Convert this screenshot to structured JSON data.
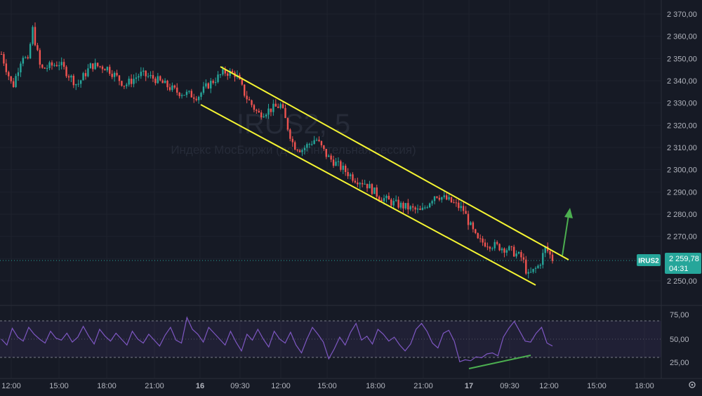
{
  "watermark": {
    "symbol": "IRUS2, 5",
    "description": "Индекс МосБиржи (дополнительная сессия)"
  },
  "price_axis": {
    "ticks": [
      "2 370,00",
      "2 360,00",
      "2 350,00",
      "2 340,00",
      "2 330,00",
      "2 320,00",
      "2 310,00",
      "2 300,00",
      "2 290,00",
      "2 280,00",
      "2 270,00",
      "2 260,00",
      "2 250,00"
    ]
  },
  "rsi_axis": {
    "ticks": [
      "75,00",
      "50,00",
      "25,00"
    ]
  },
  "time_axis": {
    "ticks": [
      "12:00",
      "15:00",
      "18:00",
      "21:00",
      "16",
      "09:30",
      "12:00",
      "15:00",
      "18:00",
      "21:00",
      "17",
      "09:30",
      "12:00",
      "15:00",
      "18:00"
    ]
  },
  "last_price": {
    "symbol": "IRUS2",
    "value": "2 259,78",
    "countdown": "04:31"
  },
  "settings_icon": "gear-icon",
  "colors": {
    "background": "#161a25",
    "candle_up": "#26a69a",
    "candle_down": "#ef5350",
    "channel": "#f5f532",
    "rsi_line": "#7e57c2",
    "rsi_band": "#7e57c2",
    "divergence": "#4caf50",
    "arrow": "#4caf50",
    "axis_text": "#b2b5be",
    "grid": "#1e222d"
  },
  "chart_data": [
    {
      "type": "candlestick",
      "title": "IRUS2, 5",
      "subtitle": "Индекс МосБиржи (дополнительная сессия)",
      "interval": "5",
      "ylim": [
        2245,
        2375
      ],
      "x_ticks": [
        "12:00",
        "15:00",
        "18:00",
        "21:00",
        "16",
        "09:30",
        "12:00",
        "15:00",
        "18:00",
        "21:00",
        "17",
        "09:30",
        "12:00",
        "15:00",
        "18:00"
      ],
      "price_path": [
        {
          "t": "11:00",
          "close": 2352
        },
        {
          "t": "11:30",
          "close": 2337
        },
        {
          "t": "12:30",
          "close": 2352
        },
        {
          "t": "13:00",
          "close": 2348
        },
        {
          "t": "13:20",
          "close": 2364
        },
        {
          "t": "14:00",
          "close": 2345
        },
        {
          "t": "15:00",
          "close": 2348
        },
        {
          "t": "16:00",
          "close": 2338
        },
        {
          "t": "17:00",
          "close": 2347
        },
        {
          "t": "18:00",
          "close": 2346
        },
        {
          "t": "19:00",
          "close": 2338
        },
        {
          "t": "20:00",
          "close": 2343
        },
        {
          "t": "21:00",
          "close": 2341
        },
        {
          "t": "22:00",
          "close": 2335
        },
        {
          "t": "23:50",
          "close": 2333
        },
        {
          "t": "16 09:00",
          "close": 2338
        },
        {
          "t": "09:30",
          "close": 2344
        },
        {
          "t": "10:00",
          "close": 2343
        },
        {
          "t": "10:30",
          "close": 2333
        },
        {
          "t": "11:00",
          "close": 2325
        },
        {
          "t": "12:00",
          "close": 2329
        },
        {
          "t": "13:00",
          "close": 2311
        },
        {
          "t": "13:30",
          "close": 2309
        },
        {
          "t": "14:30",
          "close": 2314
        },
        {
          "t": "15:30",
          "close": 2306
        },
        {
          "t": "16:00",
          "close": 2296
        },
        {
          "t": "17:00",
          "close": 2294
        },
        {
          "t": "18:00",
          "close": 2288
        },
        {
          "t": "19:00",
          "close": 2285
        },
        {
          "t": "20:00",
          "close": 2281
        },
        {
          "t": "21:00",
          "close": 2289
        },
        {
          "t": "22:00",
          "close": 2286
        },
        {
          "t": "23:50",
          "close": 2282
        },
        {
          "t": "17 09:00",
          "close": 2276
        },
        {
          "t": "09:00",
          "close": 2268
        },
        {
          "t": "09:30",
          "close": 2264
        },
        {
          "t": "10:00",
          "close": 2260
        },
        {
          "t": "10:30",
          "close": 2270
        },
        {
          "t": "11:00",
          "close": 2252
        },
        {
          "t": "11:30",
          "close": 2257
        },
        {
          "t": "12:00",
          "close": 2265
        },
        {
          "t": "12:10",
          "close": 2259.78
        }
      ],
      "annotations": [
        {
          "kind": "descending channel upper",
          "from": {
            "t": "16 09:00",
            "price": 2347
          },
          "to": {
            "t": "17 12:30",
            "price": 2259
          }
        },
        {
          "kind": "descending channel lower",
          "from": {
            "t": "15 23:50",
            "price": 2329
          },
          "to": {
            "t": "17 11:50",
            "price": 2248
          }
        },
        {
          "kind": "breakout arrow",
          "from": {
            "price": 2261
          },
          "to": {
            "price": 2282
          }
        }
      ]
    },
    {
      "type": "line",
      "name": "RSI",
      "ylim": [
        15,
        85
      ],
      "bands": [
        30,
        70
      ],
      "values": [
        50,
        44,
        61,
        52,
        48,
        62,
        55,
        50,
        46,
        58,
        51,
        49,
        56,
        47,
        52,
        63,
        53,
        45,
        60,
        53,
        48,
        56,
        50,
        44,
        58,
        50,
        46,
        55,
        49,
        43,
        54,
        62,
        49,
        46,
        72,
        60,
        55,
        47,
        62,
        56,
        50,
        44,
        58,
        47,
        38,
        55,
        49,
        60,
        50,
        42,
        58,
        50,
        46,
        57,
        44,
        36,
        50,
        62,
        55,
        47,
        30,
        40,
        52,
        44,
        57,
        66,
        49,
        53,
        45,
        60,
        55,
        48,
        52,
        44,
        38,
        45,
        60,
        66,
        58,
        46,
        41,
        56,
        59,
        48,
        27,
        29,
        28,
        32,
        31,
        35,
        36,
        33,
        52,
        61,
        68,
        58,
        48,
        47,
        56,
        62,
        46,
        43
      ],
      "annotations": [
        {
          "kind": "bullish divergence line",
          "from": {
            "value": 21
          },
          "to": {
            "value": 32
          }
        }
      ]
    }
  ]
}
